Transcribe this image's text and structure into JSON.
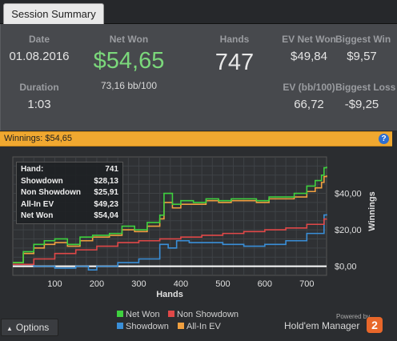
{
  "tab": {
    "label": "Session Summary"
  },
  "summary": {
    "date_label": "Date",
    "date_value": "01.08.2016",
    "duration_label": "Duration",
    "duration_value": "1:03",
    "net_won_label": "Net Won",
    "net_won_value": "$54,65",
    "net_won_bb": "73,16 bb/100",
    "hands_label": "Hands",
    "hands_value": "747",
    "ev_net_won_label": "EV Net Won",
    "ev_net_won_value": "$49,84",
    "ev_bb_label": "EV (bb/100)",
    "ev_bb_value": "66,72",
    "biggest_win_label": "Biggest Win",
    "biggest_win_value": "$9,57",
    "biggest_loss_label": "Biggest Loss",
    "biggest_loss_value": "-$9,25"
  },
  "winnings_bar": {
    "label": "Winnings: $54,65",
    "help_icon": "?"
  },
  "tooltip": {
    "rows": [
      {
        "label": "Hand:",
        "value": "741"
      },
      {
        "label": "Showdown",
        "value": "$28,13"
      },
      {
        "label": "Non Showdown",
        "value": "$25,91"
      },
      {
        "label": "All-In EV",
        "value": "$49,23"
      },
      {
        "label": "Net Won",
        "value": "$54,04"
      }
    ]
  },
  "colors": {
    "net_won": "#3fd13f",
    "non_showdown": "#e04848",
    "showdown": "#3a8fd8",
    "all_in_ev": "#f0a040",
    "zero_line": "#ffffff"
  },
  "chart_data": {
    "type": "line",
    "xlabel": "Hands",
    "ylabel": "Winnings",
    "xlim": [
      0,
      747
    ],
    "ylim": [
      -5,
      60
    ],
    "x_ticks": [
      100,
      200,
      300,
      400,
      500,
      600,
      700
    ],
    "y_ticks": [
      {
        "value": 0,
        "label": "$0,00"
      },
      {
        "value": 20,
        "label": "$20,00"
      },
      {
        "value": 40,
        "label": "$40,00"
      }
    ],
    "grid": true,
    "series": [
      {
        "name": "Net Won",
        "x": [
          0,
          25,
          50,
          75,
          100,
          130,
          160,
          190,
          200,
          230,
          260,
          290,
          320,
          350,
          360,
          380,
          400,
          430,
          460,
          490,
          520,
          550,
          580,
          610,
          640,
          670,
          700,
          720,
          735,
          741,
          747
        ],
        "y": [
          2,
          8,
          12,
          14,
          15,
          12,
          16,
          17,
          17,
          18,
          22,
          20,
          24,
          28,
          40,
          34,
          36,
          35,
          37,
          36,
          37,
          37,
          36,
          38,
          38,
          40,
          44,
          47,
          50,
          54.04,
          54.65
        ]
      },
      {
        "name": "Non Showdown",
        "x": [
          0,
          50,
          100,
          150,
          200,
          250,
          300,
          350,
          400,
          450,
          500,
          550,
          600,
          650,
          700,
          741,
          747
        ],
        "y": [
          1,
          4,
          7,
          9,
          11,
          13,
          14,
          15,
          16,
          17,
          18,
          19,
          20,
          21,
          23,
          25.91,
          26
        ]
      },
      {
        "name": "Showdown",
        "x": [
          0,
          50,
          100,
          150,
          180,
          200,
          250,
          300,
          330,
          350,
          370,
          390,
          420,
          500,
          550,
          600,
          650,
          700,
          741,
          747
        ],
        "y": [
          1,
          0,
          -1,
          0,
          -2,
          0,
          2,
          4,
          4,
          12,
          10,
          14,
          13,
          12,
          11,
          12,
          14,
          18,
          28.13,
          28.6
        ]
      },
      {
        "name": "All-In EV",
        "x": [
          0,
          25,
          50,
          75,
          100,
          130,
          160,
          190,
          200,
          230,
          260,
          290,
          320,
          350,
          360,
          380,
          400,
          430,
          460,
          490,
          520,
          550,
          580,
          610,
          640,
          670,
          700,
          720,
          735,
          741,
          747
        ],
        "y": [
          2,
          7,
          10,
          12,
          13,
          11,
          14,
          16,
          16,
          17,
          20,
          19,
          22,
          26,
          35,
          32,
          34,
          34,
          36,
          35,
          36,
          36,
          35,
          37,
          37,
          38,
          41,
          43,
          46,
          49.23,
          49.84
        ]
      }
    ],
    "legend": [
      {
        "name": "Net Won",
        "color": "#3fd13f"
      },
      {
        "name": "Non Showdown",
        "color": "#e04848"
      },
      {
        "name": "Showdown",
        "color": "#3a8fd8"
      },
      {
        "name": "All-In EV",
        "color": "#f0a040"
      }
    ]
  },
  "footer": {
    "options_label": "Options",
    "options_icon": "chevron-up-icon",
    "powered_by": "Powered by",
    "brand": "Hold'em Manager",
    "brand_badge": "2"
  }
}
